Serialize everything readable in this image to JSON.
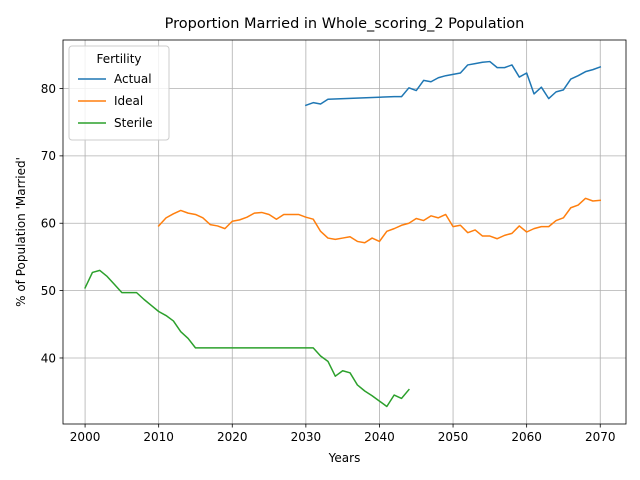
{
  "chart_data": {
    "type": "line",
    "title": "Proportion Married in Whole_scoring_2 Population",
    "xlabel": "Years",
    "ylabel": "% of Population 'Married'",
    "xlim": [
      1997,
      2073.5
    ],
    "ylim": [
      30.2,
      87.2
    ],
    "xticks": [
      2000,
      2010,
      2020,
      2030,
      2040,
      2050,
      2060,
      2070
    ],
    "yticks": [
      40,
      50,
      60,
      70,
      80
    ],
    "grid": true,
    "legend": {
      "title": "Fertility",
      "position": "top-left"
    },
    "series": [
      {
        "name": "Actual",
        "color": "#1f77b4",
        "x": [
          2030,
          2031,
          2032,
          2033,
          2042,
          2043,
          2044,
          2045,
          2046,
          2047,
          2048,
          2049,
          2050,
          2051,
          2052,
          2053,
          2054,
          2055,
          2056,
          2057,
          2058,
          2059,
          2060,
          2061,
          2062,
          2063,
          2064,
          2065,
          2066,
          2067,
          2068,
          2069,
          2070
        ],
        "y": [
          77.5,
          77.9,
          77.7,
          78.4,
          78.8,
          78.8,
          80.1,
          79.7,
          81.2,
          81.0,
          81.6,
          81.9,
          82.1,
          82.3,
          83.5,
          83.7,
          83.9,
          84.0,
          83.1,
          83.1,
          83.5,
          81.7,
          82.3,
          79.2,
          80.2,
          78.5,
          79.5,
          79.8,
          81.4,
          81.9,
          82.5,
          82.8,
          83.2
        ]
      },
      {
        "name": "Ideal",
        "color": "#ff7f0e",
        "x": [
          2010,
          2011,
          2012,
          2013,
          2014,
          2015,
          2016,
          2017,
          2018,
          2019,
          2020,
          2021,
          2022,
          2023,
          2024,
          2025,
          2026,
          2027,
          2028,
          2029,
          2030,
          2031,
          2032,
          2033,
          2034,
          2035,
          2036,
          2037,
          2038,
          2039,
          2040,
          2041,
          2042,
          2043,
          2044,
          2045,
          2046,
          2047,
          2048,
          2049,
          2050,
          2051,
          2052,
          2053,
          2054,
          2055,
          2056,
          2057,
          2058,
          2059,
          2060,
          2061,
          2062,
          2063,
          2064,
          2065,
          2066,
          2067,
          2068,
          2069,
          2070
        ],
        "y": [
          59.6,
          60.8,
          61.4,
          61.9,
          61.5,
          61.3,
          60.8,
          59.8,
          59.6,
          59.2,
          60.3,
          60.5,
          60.9,
          61.5,
          61.6,
          61.3,
          60.6,
          61.3,
          61.3,
          61.3,
          60.9,
          60.6,
          58.8,
          57.8,
          57.6,
          57.8,
          58.0,
          57.3,
          57.1,
          57.8,
          57.3,
          58.8,
          59.2,
          59.7,
          60.0,
          60.7,
          60.4,
          61.1,
          60.8,
          61.3,
          59.5,
          59.7,
          58.6,
          59.0,
          58.1,
          58.1,
          57.7,
          58.2,
          58.5,
          59.6,
          58.7,
          59.2,
          59.5,
          59.5,
          60.4,
          60.8,
          62.3,
          62.7,
          63.7,
          63.3,
          63.4
        ]
      },
      {
        "name": "Sterile",
        "color": "#2ca02c",
        "x": [
          2000,
          2001,
          2002,
          2003,
          2004,
          2005,
          2006,
          2007,
          2008,
          2009,
          2010,
          2011,
          2012,
          2013,
          2014,
          2015,
          2016,
          2017,
          2018,
          2019,
          2020,
          2021,
          2022,
          2023,
          2024,
          2025,
          2026,
          2027,
          2028,
          2029,
          2030,
          2031,
          2032,
          2033,
          2034,
          2035,
          2036,
          2037,
          2038,
          2039,
          2040,
          2041,
          2042,
          2043,
          2044
        ],
        "y": [
          50.4,
          52.7,
          53.0,
          52.1,
          50.9,
          49.7,
          49.7,
          49.7,
          48.7,
          47.8,
          46.9,
          46.3,
          45.5,
          43.9,
          42.9,
          41.5,
          41.5,
          41.5,
          41.5,
          41.5,
          41.5,
          41.5,
          41.5,
          41.5,
          41.5,
          41.5,
          41.5,
          41.5,
          41.5,
          41.5,
          41.5,
          41.5,
          40.3,
          39.5,
          37.3,
          38.1,
          37.8,
          36.0,
          35.1,
          34.4,
          33.6,
          32.8,
          34.5,
          34.0,
          35.3
        ]
      }
    ]
  }
}
